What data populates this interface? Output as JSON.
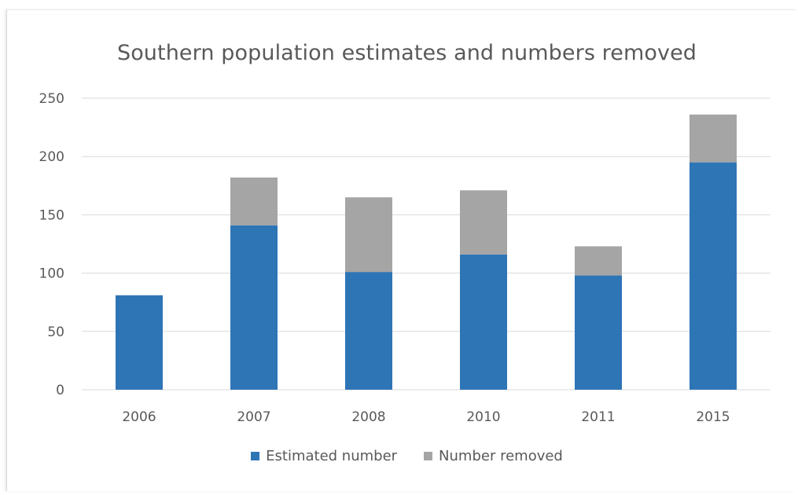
{
  "colors": {
    "estimated": "#2e75b6",
    "removed": "#a5a5a5",
    "grid": "#d9d9d9",
    "text": "#595959"
  },
  "chart_data": {
    "type": "bar",
    "stacked": true,
    "title": "Southern population estimates and numbers removed",
    "xlabel": "",
    "ylabel": "",
    "categories": [
      "2006",
      "2007",
      "2008",
      "2010",
      "2011",
      "2015"
    ],
    "series": [
      {
        "name": "Estimated number",
        "values": [
          81,
          141,
          101,
          116,
          98,
          195
        ]
      },
      {
        "name": "Number removed",
        "values": [
          0,
          41,
          64,
          55,
          25,
          41
        ]
      }
    ],
    "ylim": [
      0,
      250
    ],
    "yticks": [
      "0",
      "50",
      "100",
      "150",
      "200",
      "250"
    ],
    "grid": true,
    "legend_position": "bottom"
  }
}
